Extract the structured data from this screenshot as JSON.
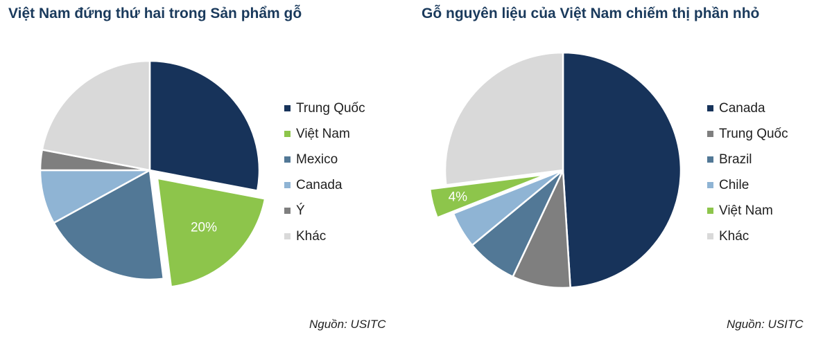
{
  "chart_data": [
    {
      "type": "pie",
      "title": "Việt Nam đứng thứ hai trong Sản phẩm gỗ",
      "unit": "%",
      "start_angle_deg": 0,
      "slices": [
        {
          "label": "Trung Quốc",
          "value": 28,
          "color": "#17335a"
        },
        {
          "label": "Việt Nam",
          "value": 20,
          "color": "#8dc54b",
          "exploded": true,
          "data_label": "20%",
          "label_color": "#ffffff"
        },
        {
          "label": "Mexico",
          "value": 19,
          "color": "#527896"
        },
        {
          "label": "Canada",
          "value": 8,
          "color": "#8fb4d4"
        },
        {
          "label": "Ý",
          "value": 3,
          "color": "#7f7f7f"
        },
        {
          "label": "Khác",
          "value": 22,
          "color": "#d9d9d9"
        }
      ],
      "legend_position": "right",
      "source": "Nguồn: USITC"
    },
    {
      "type": "pie",
      "title": "Gỗ nguyên liệu của Việt Nam chiếm thị phần nhỏ",
      "unit": "%",
      "start_angle_deg": 0,
      "slices": [
        {
          "label": "Canada",
          "value": 49,
          "color": "#17335a"
        },
        {
          "label": "Trung Quốc",
          "value": 8,
          "color": "#7f7f7f"
        },
        {
          "label": "Brazil",
          "value": 7,
          "color": "#527896"
        },
        {
          "label": "Chile",
          "value": 5,
          "color": "#8fb4d4"
        },
        {
          "label": "Việt Nam",
          "value": 4,
          "color": "#8dc54b",
          "exploded": true,
          "data_label": "4%",
          "label_color": "#ffffff"
        },
        {
          "label": "Khác",
          "value": 27,
          "color": "#d9d9d9"
        }
      ],
      "legend_order": [
        "Canada",
        "Trung Quốc",
        "Brazil",
        "Chile",
        "Việt Nam",
        "Khác"
      ],
      "legend_position": "right",
      "source": "Nguồn: USITC"
    }
  ]
}
